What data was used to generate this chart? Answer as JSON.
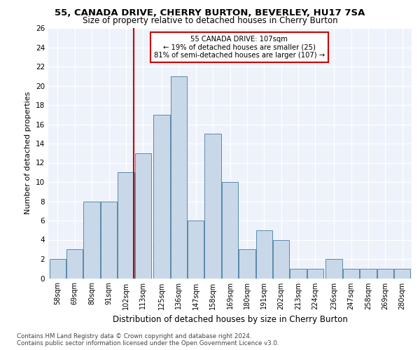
{
  "title1": "55, CANADA DRIVE, CHERRY BURTON, BEVERLEY, HU17 7SA",
  "title2": "Size of property relative to detached houses in Cherry Burton",
  "xlabel": "Distribution of detached houses by size in Cherry Burton",
  "ylabel": "Number of detached properties",
  "categories": [
    "58sqm",
    "69sqm",
    "80sqm",
    "91sqm",
    "102sqm",
    "113sqm",
    "125sqm",
    "136sqm",
    "147sqm",
    "158sqm",
    "169sqm",
    "180sqm",
    "191sqm",
    "202sqm",
    "213sqm",
    "224sqm",
    "236sqm",
    "247sqm",
    "258sqm",
    "269sqm",
    "280sqm"
  ],
  "values": [
    2,
    3,
    8,
    8,
    11,
    13,
    17,
    21,
    6,
    15,
    10,
    3,
    5,
    4,
    1,
    1,
    2,
    1,
    1,
    1,
    1
  ],
  "bar_color": "#c8d8e8",
  "bar_edge_color": "#5a8aaa",
  "vline_x": 107,
  "vline_color": "#cc0000",
  "annotation_text": "55 CANADA DRIVE: 107sqm\n← 19% of detached houses are smaller (25)\n81% of semi-detached houses are larger (107) →",
  "annotation_box_color": "#ffffff",
  "annotation_box_edge_color": "#cc0000",
  "ylim": [
    0,
    26
  ],
  "yticks": [
    0,
    2,
    4,
    6,
    8,
    10,
    12,
    14,
    16,
    18,
    20,
    22,
    24,
    26
  ],
  "background_color": "#eef2fa",
  "footer1": "Contains HM Land Registry data © Crown copyright and database right 2024.",
  "footer2": "Contains public sector information licensed under the Open Government Licence v3.0."
}
